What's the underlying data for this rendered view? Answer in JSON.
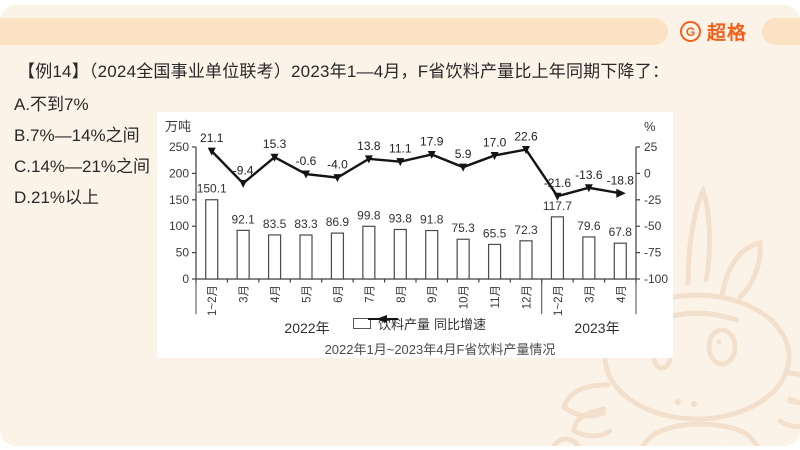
{
  "brand": {
    "logo_letter": "G",
    "logo_text": "超格",
    "accent_color": "#f2601c",
    "band_color": "#fbe2c3",
    "background_color": "#fcf3e8"
  },
  "slide": {
    "stem": "【例14】（2024全国事业单位联考）2023年1—4月，F省饮料产量比上年同期下降了：",
    "options": [
      "A.不到7%",
      "B.7%—14%之间",
      "C.14%—21%之间",
      "D.21%以上"
    ]
  },
  "chart_data": {
    "type": "bar+line",
    "title": "2022年1月~2023年4月F省饮料产量情况",
    "categories": [
      "1~2月",
      "3月",
      "4月",
      "5月",
      "6月",
      "7月",
      "8月",
      "9月",
      "10月",
      "11月",
      "12月",
      "1~2月",
      "3月",
      "4月"
    ],
    "year_groups": [
      {
        "label": "2022年",
        "span": 11
      },
      {
        "label": "2023年",
        "span": 3
      }
    ],
    "left_axis": {
      "label": "万吨",
      "min": 0,
      "max": 250,
      "ticks": [
        0,
        50,
        100,
        150,
        200,
        250
      ]
    },
    "right_axis": {
      "label": "%",
      "min": -100,
      "max": 25,
      "ticks": [
        25,
        0,
        -25,
        -50,
        -75,
        -100
      ]
    },
    "series": [
      {
        "name": "饮料产量",
        "type": "bar",
        "axis": "left",
        "values": [
          150.1,
          92.1,
          83.5,
          83.3,
          86.9,
          99.8,
          93.8,
          91.8,
          75.3,
          65.5,
          72.3,
          117.7,
          79.6,
          67.8
        ]
      },
      {
        "name": "同比增速",
        "type": "line",
        "axis": "right",
        "values": [
          21.1,
          -9.4,
          15.3,
          -0.6,
          -4.0,
          13.8,
          11.1,
          17.9,
          5.9,
          17.0,
          22.6,
          -21.6,
          -13.6,
          -18.8
        ]
      }
    ],
    "legend_position": "bottom",
    "colors": {
      "bar_fill": "#ffffff",
      "bar_stroke": "#4a4a4a",
      "line": "#141414",
      "text": "#3a3a3a"
    }
  }
}
